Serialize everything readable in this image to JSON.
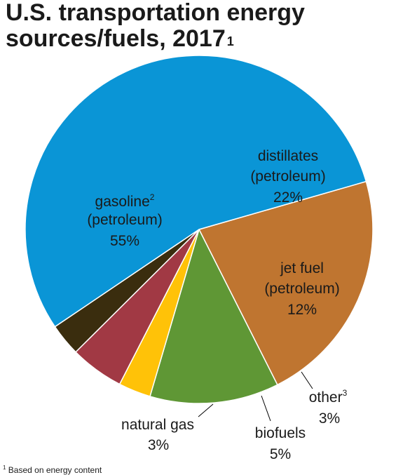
{
  "title": {
    "line1": "U.S. transportation energy",
    "line2": "sources/fuels, 2017",
    "footnote_mark": "1"
  },
  "chart_data": {
    "type": "pie",
    "title": "U.S. transportation energy sources/fuels, 2017",
    "slices": [
      {
        "label": "distillates (petroleum)",
        "value": 22,
        "display": "22%",
        "color": "#bf7530"
      },
      {
        "label": "jet fuel (petroleum)",
        "value": 12,
        "display": "12%",
        "color": "#5f9735"
      },
      {
        "label": "other",
        "value": 3,
        "display": "3%",
        "color": "#ffc208",
        "footnote_mark": "3"
      },
      {
        "label": "biofuels",
        "value": 5,
        "display": "5%",
        "color": "#a13944"
      },
      {
        "label": "natural gas",
        "value": 3,
        "display": "3%",
        "color": "#3a2d0e"
      },
      {
        "label": "gasoline (petroleum)",
        "value": 55,
        "display": "55%",
        "color": "#0a95d6",
        "footnote_mark": "2"
      }
    ]
  },
  "labels": {
    "gasoline": {
      "line1": "gasoline",
      "sup": "2",
      "line2": "(petroleum)",
      "pct": "55%"
    },
    "distillates": {
      "line1": "distillates",
      "line2": "(petroleum)",
      "pct": "22%"
    },
    "jet_fuel": {
      "line1": "jet fuel",
      "line2": "(petroleum)",
      "pct": "12%"
    },
    "other": {
      "line1": "other",
      "sup": "3",
      "pct": "3%"
    },
    "biofuels": {
      "line1": "biofuels",
      "pct": "5%"
    },
    "natural_gas": {
      "line1": "natural gas",
      "pct": "3%"
    }
  },
  "footnote": {
    "mark": "1",
    "text": "Based on energy content"
  }
}
